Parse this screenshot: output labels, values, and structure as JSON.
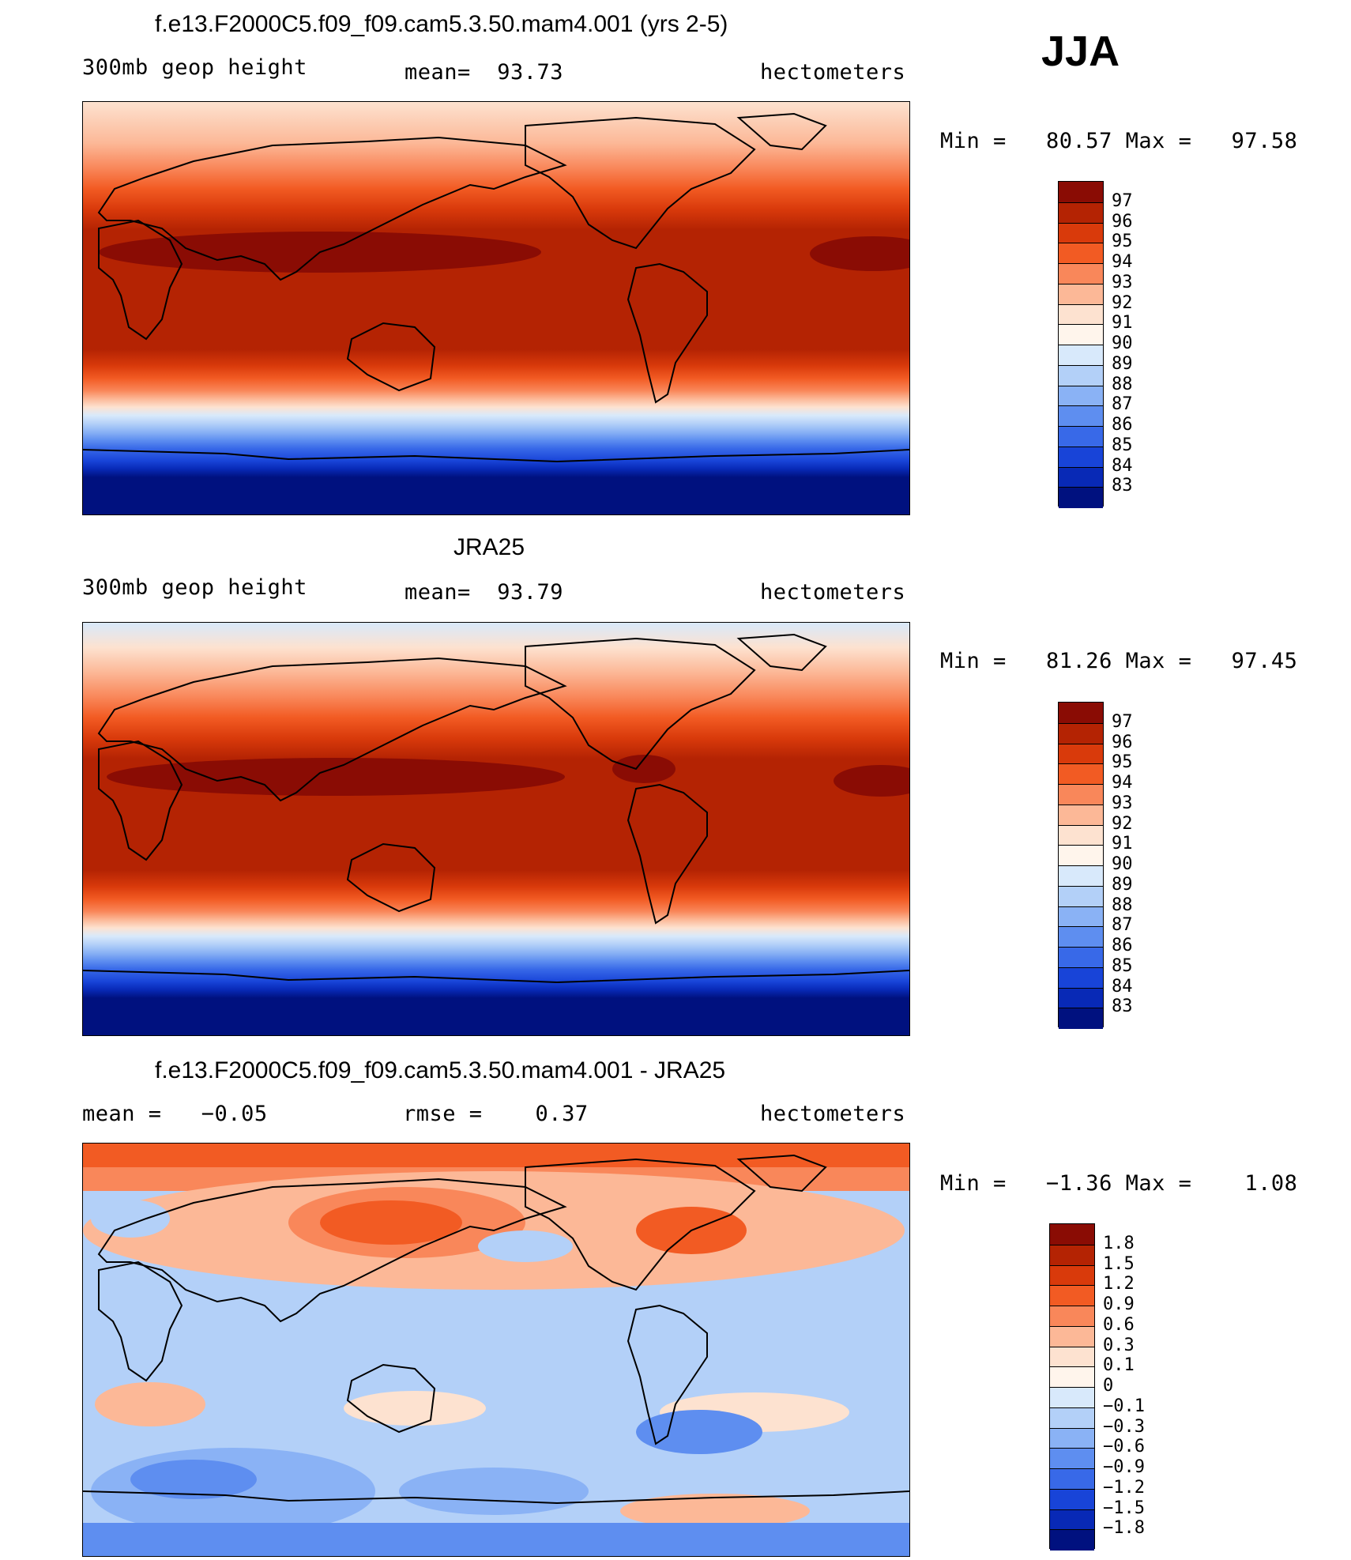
{
  "season": "JJA",
  "panels": [
    {
      "id": "model",
      "title": "f.e13.F2000C5.f09_f09.cam5.3.50.mam4.001 (yrs 2-5)",
      "left_label": "300mb geop height",
      "center_label": "mean=  93.73",
      "right_label": "hectometers",
      "stats": "Min =   80.57 Max =   97.58",
      "scale": "field",
      "min": 80.57,
      "max": 97.58
    },
    {
      "id": "obs",
      "title": "JRA25",
      "left_label": "300mb geop height",
      "center_label": "mean=  93.79",
      "right_label": "hectometers",
      "stats": "Min =   81.26 Max =   97.45",
      "scale": "field",
      "min": 81.26,
      "max": 97.45
    },
    {
      "id": "diff",
      "title": "f.e13.F2000C5.f09_f09.cam5.3.50.mam4.001 - JRA25",
      "left_label": "mean =   −0.05",
      "center_label": "rmse =    0.37",
      "right_label": "hectometers",
      "stats": "Min =   −1.36 Max =    1.08",
      "scale": "diff",
      "min": -1.36,
      "max": 1.08
    }
  ],
  "colorbars": {
    "field": {
      "labels": [
        "97",
        "96",
        "95",
        "94",
        "93",
        "92",
        "91",
        "90",
        "89",
        "88",
        "87",
        "86",
        "85",
        "84",
        "83"
      ],
      "colors": [
        "#8a0c04",
        "#b42303",
        "#d93a0b",
        "#f25b23",
        "#f9875a",
        "#fcb897",
        "#fde2d0",
        "#fff5ec",
        "#d8e9fb",
        "#b3d0f8",
        "#8ab2f5",
        "#5e8ef0",
        "#3869e8",
        "#1844d8",
        "#0829b6",
        "#00117f"
      ]
    },
    "diff": {
      "labels": [
        "1.8",
        "1.5",
        "1.2",
        "0.9",
        "0.6",
        "0.3",
        "0.1",
        "0",
        "−0.1",
        "−0.3",
        "−0.6",
        "−0.9",
        "−1.2",
        "−1.5",
        "−1.8"
      ],
      "colors": [
        "#8a0c04",
        "#b42303",
        "#d93a0b",
        "#f25b23",
        "#f9875a",
        "#fcb897",
        "#fde2d0",
        "#fff5ec",
        "#d8e9fb",
        "#b3d0f8",
        "#8ab2f5",
        "#5e8ef0",
        "#3869e8",
        "#1844d8",
        "#0829b6",
        "#00117f"
      ]
    }
  }
}
